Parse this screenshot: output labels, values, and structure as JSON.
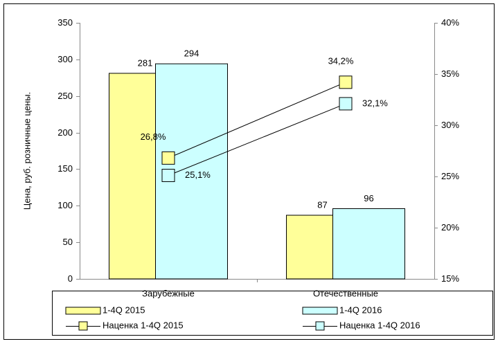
{
  "chart_data": {
    "type": "bar",
    "y_label": "Цена, руб. розничные цены.",
    "categories": [
      "Зарубежные",
      "Отечественные"
    ],
    "series": [
      {
        "name": "1-4Q 2015",
        "type": "bar",
        "color": "#ffff99",
        "values": [
          281,
          87
        ]
      },
      {
        "name": "1-4Q 2016",
        "type": "bar",
        "color": "#ccffff",
        "values": [
          294,
          96
        ]
      },
      {
        "name": "Наценка 1-4Q 2015",
        "type": "line",
        "axis": "y2",
        "color": "#ffff99",
        "values": [
          26.8,
          34.2
        ],
        "value_labels": [
          "26,8%",
          "34,2%"
        ]
      },
      {
        "name": "Наценка 1-4Q 2016",
        "type": "line",
        "axis": "y2",
        "color": "#ccffff",
        "values": [
          25.1,
          32.1
        ],
        "value_labels": [
          "25,1%",
          "32,1%"
        ]
      }
    ],
    "ylim": [
      0,
      350
    ],
    "yticks": [
      0,
      50,
      100,
      150,
      200,
      250,
      300,
      350
    ],
    "y2lim": [
      15,
      40
    ],
    "y2ticks": [
      {
        "value": 15,
        "label": "15%"
      },
      {
        "value": 20,
        "label": "20%"
      },
      {
        "value": 25,
        "label": "25%"
      },
      {
        "value": 30,
        "label": "30%"
      },
      {
        "value": 35,
        "label": "35%"
      },
      {
        "value": 40,
        "label": "40%"
      }
    ],
    "grid": false,
    "legend": "bottom"
  }
}
